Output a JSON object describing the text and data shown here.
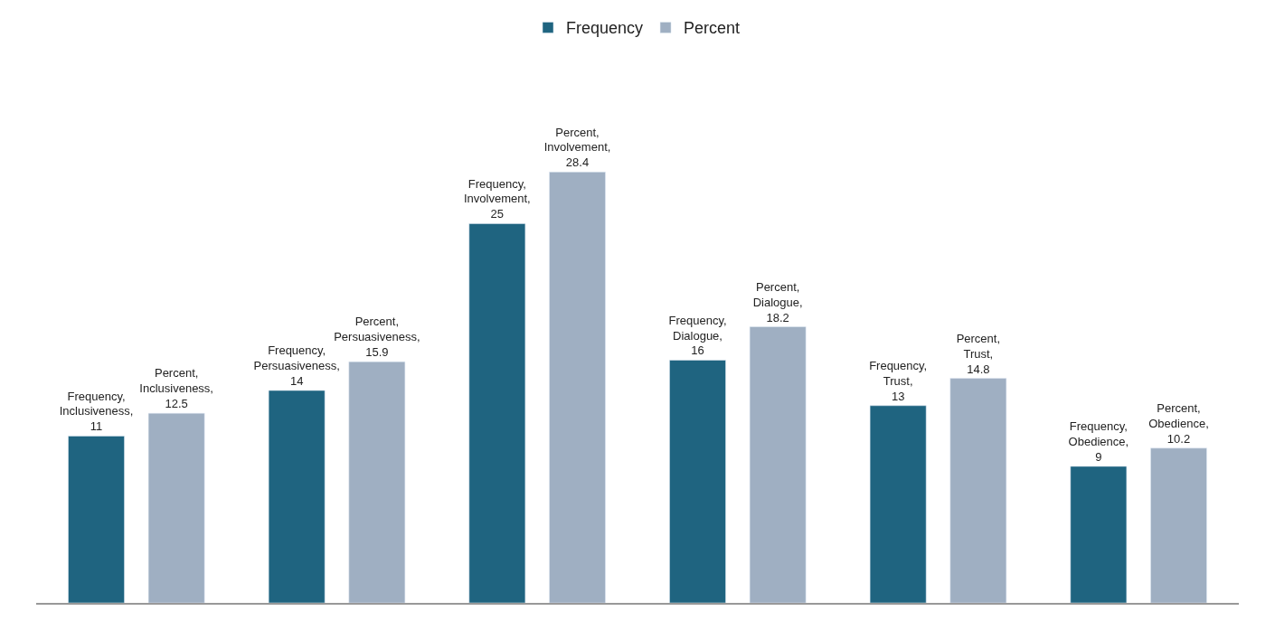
{
  "chart_data": {
    "type": "bar",
    "categories": [
      null,
      null,
      null,
      null,
      null,
      null
    ],
    "series": [
      {
        "name": "Frequency",
        "color": "#1f6480",
        "values": [
          11,
          14,
          25,
          16,
          13,
          9
        ],
        "value_labels": [
          "Frequency, Inclusiveness, 11",
          "Frequency, Persuasiveness, 14",
          "Frequency, Involvement, 25",
          "Frequency, Dialogue, 16",
          "Frequency, Trust, 13",
          "Frequency, Obedience, 9"
        ]
      },
      {
        "name": "Percent",
        "color": "#9fafc2",
        "values": [
          12.5,
          15.9,
          28.4,
          18.2,
          14.8,
          10.2
        ],
        "value_labels": [
          "Percent, Inclusiveness, 12.5",
          "Percent, Persuasiveness, 15.9",
          "Percent, Involvement, 28.4",
          "Percent, Dialogue, 18.2",
          "Percent, Trust, 14.8",
          "Percent, Obedience, 10.2"
        ]
      }
    ],
    "legend": "top"
  }
}
